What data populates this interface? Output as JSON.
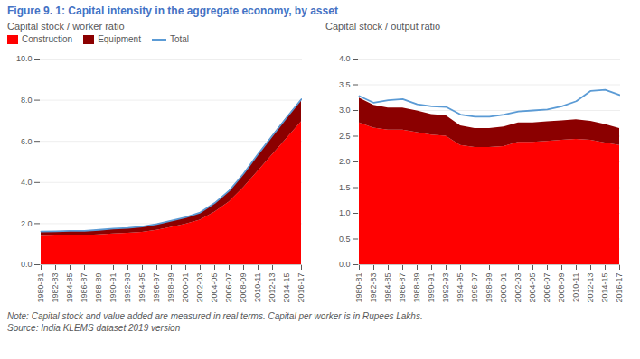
{
  "title": "Figure 9. 1: Capital intensity in the aggregate economy, by asset",
  "annotations": [
    "Note: Capital stock and value added are measured in real terms. Capital per worker is in Rupees Lakhs.",
    "Source: India KLEMS dataset 2019 version"
  ],
  "chart_data": [
    {
      "type": "area",
      "title": "Capital stock / worker ratio",
      "stacked": true,
      "grid": true,
      "legend": "upper left",
      "categories": [
        "1980-81",
        "1982-83",
        "1984-85",
        "1986-87",
        "1988-89",
        "1990-91",
        "1992-93",
        "1994-95",
        "1996-97",
        "1998-99",
        "2000-01",
        "2002-03",
        "2004-05",
        "2006-07",
        "2008-09",
        "2010-11",
        "2012-13",
        "2014-15",
        "2016-17"
      ],
      "series": [
        {
          "name": "Construction",
          "type": "area",
          "color": "#FF0000",
          "values": [
            1.38,
            1.4,
            1.42,
            1.43,
            1.46,
            1.5,
            1.53,
            1.58,
            1.68,
            1.82,
            1.97,
            2.17,
            2.55,
            3.05,
            3.75,
            4.55,
            5.35,
            6.15,
            6.95
          ]
        },
        {
          "name": "Equipment",
          "type": "area",
          "color": "#8B0000",
          "values": [
            0.22,
            0.21,
            0.21,
            0.21,
            0.22,
            0.24,
            0.24,
            0.26,
            0.28,
            0.3,
            0.32,
            0.35,
            0.42,
            0.52,
            0.65,
            0.8,
            0.92,
            1.02,
            1.08
          ]
        },
        {
          "name": "Total",
          "type": "line",
          "color": "#5B9BD5",
          "values": [
            1.62,
            1.63,
            1.65,
            1.65,
            1.7,
            1.76,
            1.79,
            1.86,
            1.98,
            2.14,
            2.31,
            2.54,
            3.0,
            3.6,
            4.43,
            5.38,
            6.28,
            7.18,
            8.05
          ]
        }
      ],
      "ylim": [
        0,
        10.0
      ],
      "yticks": [
        {
          "value": 0,
          "label": "0.0"
        },
        {
          "value": 2,
          "label": "2.0"
        },
        {
          "value": 4,
          "label": "4.0"
        },
        {
          "value": 6,
          "label": "6.0"
        },
        {
          "value": 8,
          "label": "8.0"
        },
        {
          "value": 10,
          "label": "10.0"
        }
      ]
    },
    {
      "type": "area",
      "title": "Capital stock / output ratio",
      "stacked": true,
      "grid": true,
      "categories": [
        "1980-81",
        "1982-83",
        "1984-85",
        "1986-87",
        "1988-89",
        "1990-91",
        "1992-93",
        "1994-95",
        "1996-97",
        "1998-99",
        "2000-01",
        "2002-03",
        "2004-05",
        "2006-07",
        "2008-09",
        "2010-11",
        "2012-13",
        "2014-15",
        "2016-17"
      ],
      "series": [
        {
          "name": "Construction",
          "type": "area",
          "color": "#FF0000",
          "values": [
            2.76,
            2.66,
            2.62,
            2.62,
            2.57,
            2.52,
            2.5,
            2.32,
            2.28,
            2.28,
            2.3,
            2.38,
            2.38,
            2.4,
            2.42,
            2.44,
            2.42,
            2.37,
            2.32
          ]
        },
        {
          "name": "Equipment",
          "type": "area",
          "color": "#8B0000",
          "values": [
            0.48,
            0.44,
            0.43,
            0.43,
            0.42,
            0.4,
            0.4,
            0.38,
            0.37,
            0.37,
            0.38,
            0.38,
            0.38,
            0.38,
            0.38,
            0.38,
            0.37,
            0.36,
            0.33
          ]
        },
        {
          "name": "Total",
          "type": "line",
          "color": "#5B9BD5",
          "values": [
            3.28,
            3.15,
            3.2,
            3.22,
            3.12,
            3.08,
            3.07,
            2.92,
            2.88,
            2.88,
            2.92,
            2.98,
            3.0,
            3.02,
            3.08,
            3.18,
            3.38,
            3.4,
            3.3
          ]
        }
      ],
      "ylim": [
        0,
        4.0
      ],
      "yticks": [
        {
          "value": 0,
          "label": "0.0"
        },
        {
          "value": 0.5,
          "label": "0.5"
        },
        {
          "value": 1,
          "label": "1.0"
        },
        {
          "value": 1.5,
          "label": "1.5"
        },
        {
          "value": 2,
          "label": "2.0"
        },
        {
          "value": 2.5,
          "label": "2.5"
        },
        {
          "value": 3,
          "label": "3.0"
        },
        {
          "value": 3.5,
          "label": "3.5"
        },
        {
          "value": 4,
          "label": "4.0"
        }
      ]
    }
  ]
}
